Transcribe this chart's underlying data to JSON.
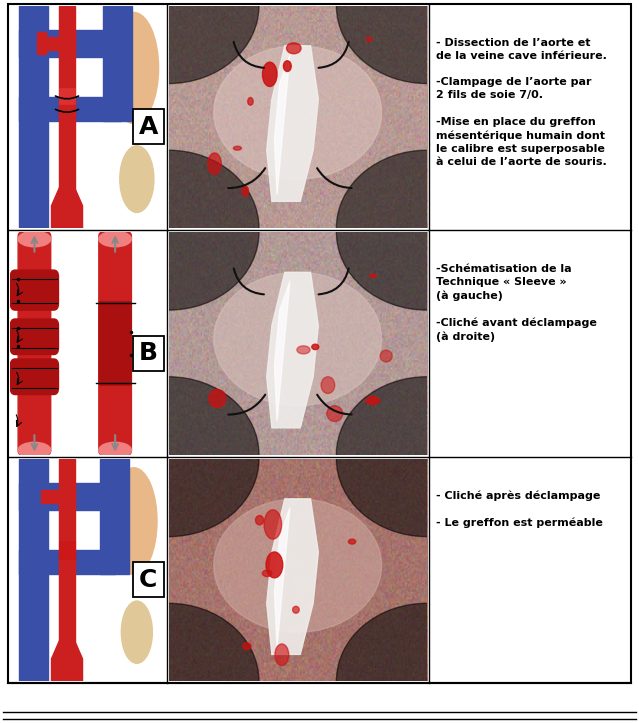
{
  "fig_width": 6.39,
  "fig_height": 7.23,
  "dpi": 100,
  "bg_color": "#ffffff",
  "text_panel_A": "- Dissection de l’aorte et\nde la veine cave inférieure.\n\n-Clampage de l’aorte par\n2 fils de soie 7/0.\n\n-Mise en place du greffon\nmésentérique humain dont\nle calibre est superposable\nà celui de l’aorte de souris.",
  "text_panel_B": "-Schématisation de la\nTechnique « Sleeve »\n(à gauche)\n\n-Cliché avant déclampage\n(à droite)",
  "text_panel_C": "- Cliché après déclampage\n\n- Le greffon est perméable",
  "label_fontsize": 18,
  "text_fontsize": 8.0,
  "skin_color": "#f5c9a0",
  "blue_vessel": "#3a4fa8",
  "red_vessel": "#cc2020",
  "red_vessel_dark": "#aa1010",
  "red_vessel_light": "#e05050",
  "border_lw": 1.5
}
